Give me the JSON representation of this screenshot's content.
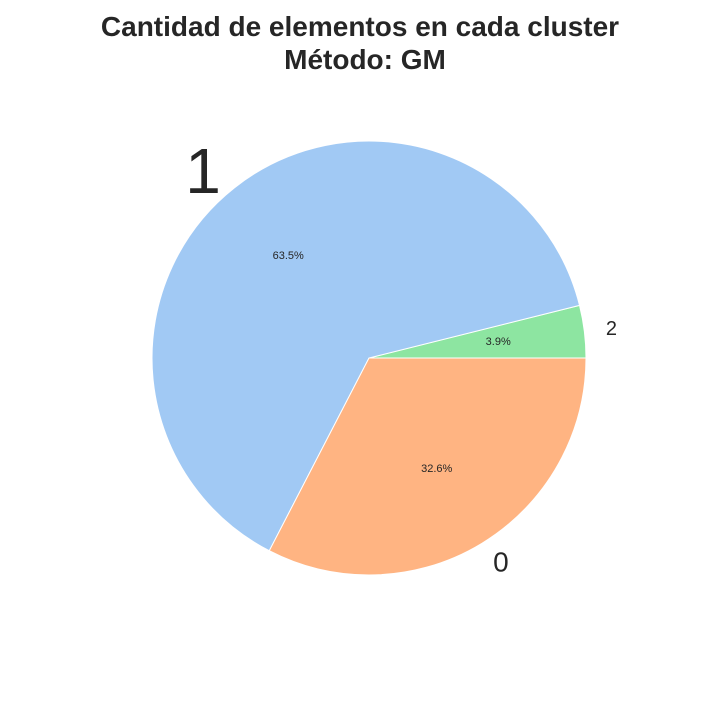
{
  "chart_data": {
    "type": "pie",
    "title": "Cantidad de elementos en cada cluster",
    "subtitle": "Método: GM",
    "start_angle_deg": 0,
    "direction": "counterclockwise",
    "slices": [
      {
        "label": "2",
        "value": 3.9,
        "percent_label": "3.9%",
        "color": "#8de5a1"
      },
      {
        "label": "1",
        "value": 63.5,
        "percent_label": "63.5%",
        "color": "#a1c9f4"
      },
      {
        "label": "0",
        "value": 32.6,
        "percent_label": "32.6%",
        "color": "#ffb482"
      }
    ],
    "legend": false
  }
}
